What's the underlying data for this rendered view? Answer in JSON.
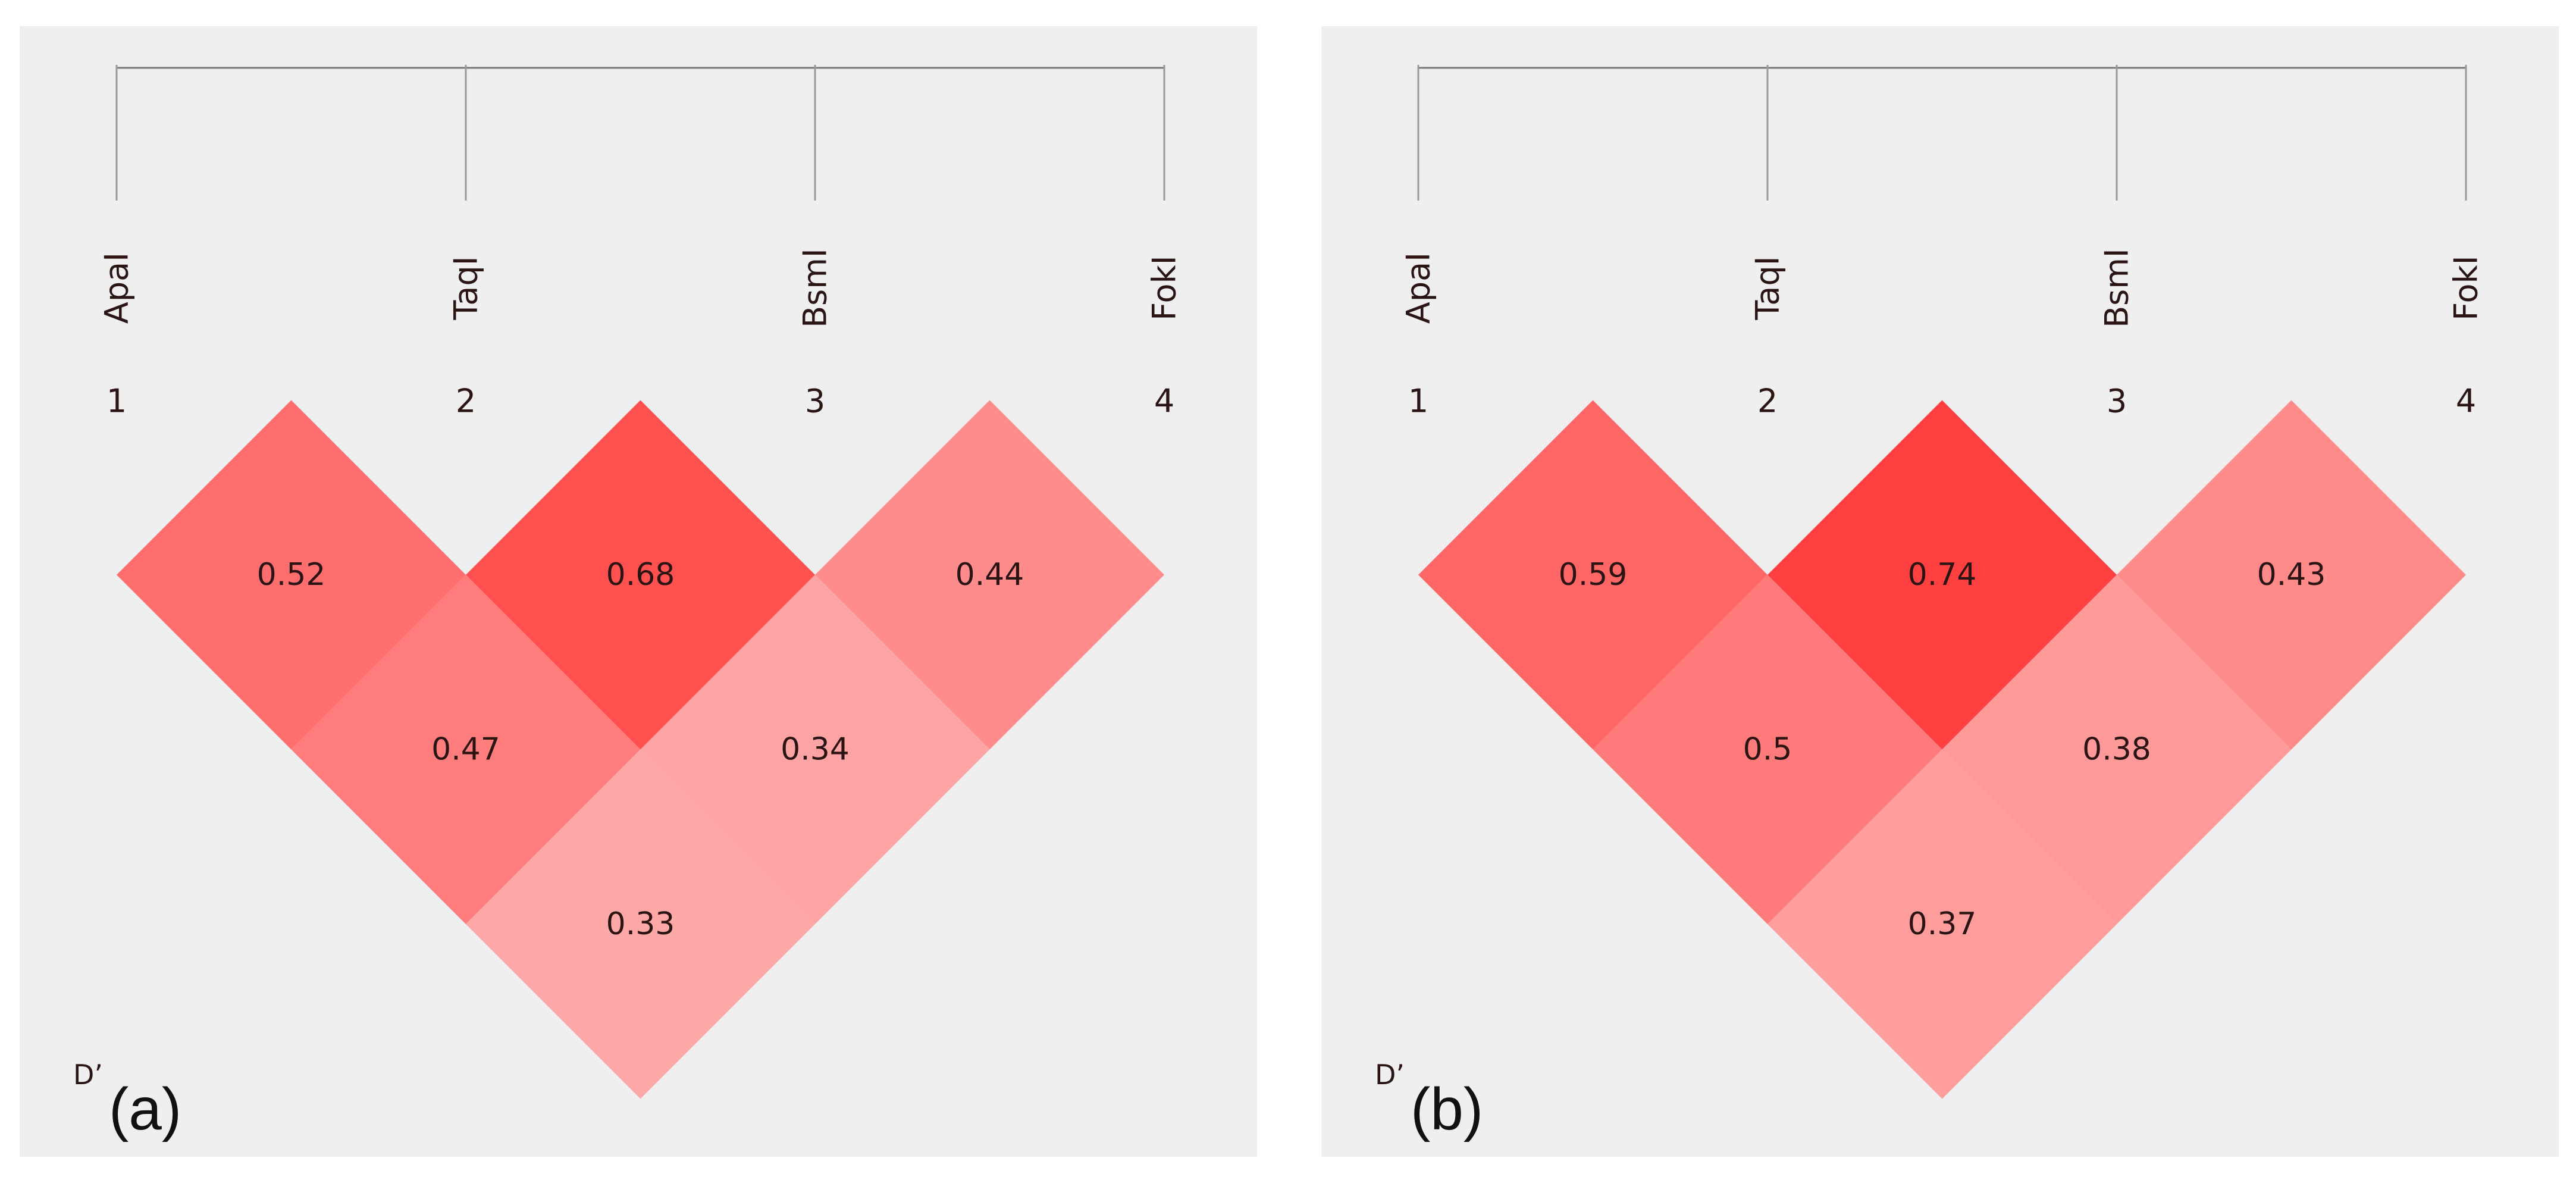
{
  "markers": [
    {
      "name": "ApaI",
      "number": "1"
    },
    {
      "name": "TaqI",
      "number": "2"
    },
    {
      "name": "BsmI",
      "number": "3"
    },
    {
      "name": "FokI",
      "number": "4"
    }
  ],
  "measure_label": "D’",
  "panels": [
    {
      "id": "a",
      "label": "(a)",
      "cells": [
        {
          "i": 1,
          "j": 2,
          "value": "0.52",
          "color": "#ff6e6e"
        },
        {
          "i": 2,
          "j": 3,
          "value": "0.68",
          "color": "#ff5050"
        },
        {
          "i": 3,
          "j": 4,
          "value": "0.44",
          "color": "#ff8c8c"
        },
        {
          "i": 1,
          "j": 3,
          "value": "0.47",
          "color": "#ff7d7d"
        },
        {
          "i": 2,
          "j": 4,
          "value": "0.34",
          "color": "#ffa4a4"
        },
        {
          "i": 1,
          "j": 4,
          "value": "0.33",
          "color": "#ffa8a8"
        }
      ]
    },
    {
      "id": "b",
      "label": "(b)",
      "cells": [
        {
          "i": 1,
          "j": 2,
          "value": "0.59",
          "color": "#ff6666"
        },
        {
          "i": 2,
          "j": 3,
          "value": "0.74",
          "color": "#ff4040"
        },
        {
          "i": 3,
          "j": 4,
          "value": "0.43",
          "color": "#ff8a8a"
        },
        {
          "i": 1,
          "j": 3,
          "value": "0.5",
          "color": "#ff7a7a"
        },
        {
          "i": 2,
          "j": 4,
          "value": "0.38",
          "color": "#ff9a9a"
        },
        {
          "i": 1,
          "j": 4,
          "value": "0.37",
          "color": "#ff9c9c"
        }
      ]
    }
  ]
}
